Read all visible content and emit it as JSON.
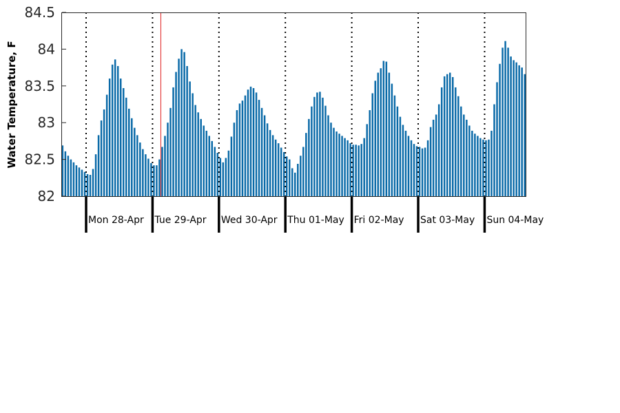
{
  "chart_data": {
    "type": "bar",
    "title": "",
    "xlabel": "",
    "ylabel": "Water Temperature, F",
    "ylim": [
      82,
      84.5
    ],
    "yticks": [
      "82",
      "82.5",
      "83",
      "83.5",
      "84",
      "84.5"
    ],
    "bar_color": "#0a6aa8",
    "grid": false,
    "day_separators": "dotted",
    "now_marker_color": "#e02020",
    "now_marker_hour": 27,
    "start_hour": -9,
    "hours_per_bar": 1,
    "day_labels": [
      "Mon 28-Apr",
      "Tue 29-Apr",
      "Wed 30-Apr",
      "Thu 01-May",
      "Fri 02-May",
      "Sat 03-May",
      "Sun 04-May"
    ],
    "series": [
      {
        "values": [
          82.69,
          82.61,
          82.55,
          82.5,
          82.46,
          82.42,
          82.39,
          82.36,
          82.33,
          82.3,
          82.29,
          82.37,
          82.57,
          82.83,
          83.03,
          83.18,
          83.38,
          83.6,
          83.79,
          83.86,
          83.77,
          83.6,
          83.47,
          83.34,
          83.19,
          83.06,
          82.93,
          82.83,
          82.73,
          82.64,
          82.57,
          82.51,
          82.45,
          82.42,
          82.42,
          82.5,
          82.67,
          82.82,
          83.0,
          83.2,
          83.48,
          83.69,
          83.87,
          84.0,
          83.96,
          83.77,
          83.56,
          83.4,
          83.24,
          83.14,
          83.05,
          82.96,
          82.89,
          82.82,
          82.75,
          82.67,
          82.59,
          82.52,
          82.46,
          82.52,
          82.62,
          82.81,
          83.0,
          83.17,
          83.26,
          83.3,
          83.37,
          83.45,
          83.49,
          83.47,
          83.41,
          83.31,
          83.2,
          83.1,
          82.99,
          82.9,
          82.83,
          82.77,
          82.72,
          82.66,
          82.6,
          82.54,
          82.5,
          82.38,
          82.32,
          82.44,
          82.55,
          82.67,
          82.86,
          83.05,
          83.22,
          83.35,
          83.41,
          83.42,
          83.34,
          83.23,
          83.1,
          83.0,
          82.93,
          82.88,
          82.85,
          82.82,
          82.79,
          82.76,
          82.72,
          82.7,
          82.7,
          82.69,
          82.71,
          82.79,
          82.98,
          83.17,
          83.4,
          83.57,
          83.68,
          83.74,
          83.84,
          83.83,
          83.68,
          83.53,
          83.37,
          83.22,
          83.08,
          82.97,
          82.89,
          82.82,
          82.76,
          82.71,
          82.68,
          82.67,
          82.65,
          82.66,
          82.76,
          82.94,
          83.04,
          83.11,
          83.25,
          83.48,
          83.63,
          83.66,
          83.68,
          83.62,
          83.48,
          83.36,
          83.22,
          83.11,
          83.04,
          82.96,
          82.89,
          82.85,
          82.82,
          82.79,
          82.77,
          82.76,
          82.77,
          82.89,
          83.25,
          83.55,
          83.8,
          84.02,
          84.11,
          84.02,
          83.9,
          83.85,
          83.82,
          83.78,
          83.75,
          83.66
        ]
      }
    ]
  }
}
